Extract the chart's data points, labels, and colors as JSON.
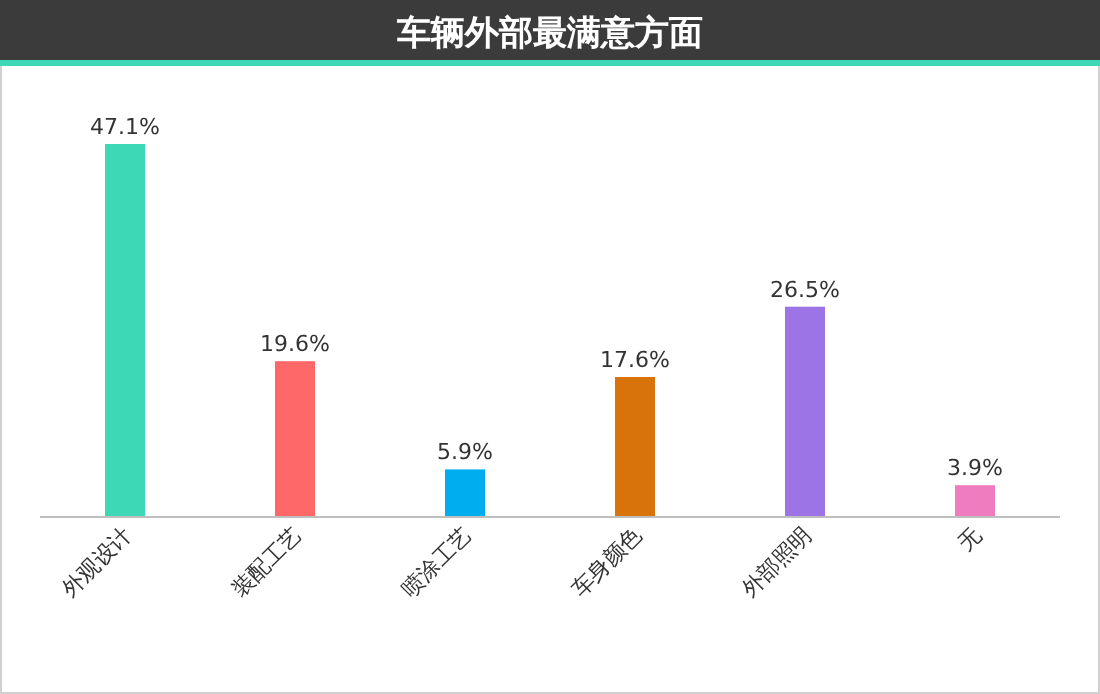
{
  "chart_data": {
    "type": "bar",
    "title": "车辆外部最满意方面",
    "categories": [
      "外观设计",
      "装配工艺",
      "喷涂工艺",
      "车身颜色",
      "外部照明",
      "无"
    ],
    "values": [
      47.1,
      19.6,
      5.9,
      17.6,
      26.5,
      3.9
    ],
    "colors": [
      "#3dd9b7",
      "#ff6868",
      "#00adef",
      "#d8730c",
      "#9d74e5",
      "#ef7cbf"
    ],
    "value_labels": [
      "47.1%",
      "19.6%",
      "5.9%",
      "17.6%",
      "26.5%",
      "3.9%"
    ],
    "legend": false
  }
}
